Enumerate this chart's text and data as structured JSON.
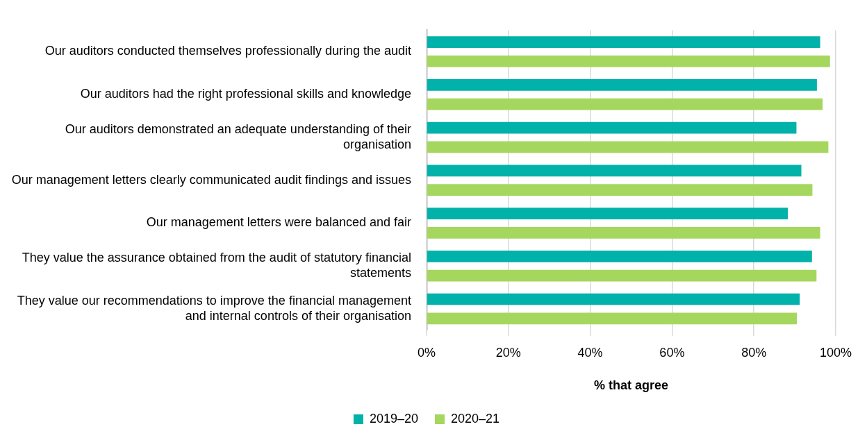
{
  "chart_data": {
    "type": "bar",
    "orientation": "horizontal",
    "xlabel": "% that agree",
    "categories": [
      "Our auditors conducted themselves professionally during the audit",
      "Our auditors had the right professional skills and knowledge",
      "Our auditors demonstrated an adequate understanding of their organisation",
      "Our management letters clearly communicated audit findings and issues",
      "Our management letters were balanced and fair",
      "They value the assurance obtained from the audit of statutory financial statements",
      "They value our recommendations to improve the financial management and internal controls of their organisation"
    ],
    "series": [
      {
        "name": "2019–20",
        "color": "#00b2a9",
        "values": [
          96.2,
          95.4,
          90.4,
          91.6,
          88.3,
          94.2,
          91.2
        ]
      },
      {
        "name": "2020–21",
        "color": "#a5d75e",
        "values": [
          98.6,
          96.8,
          98.2,
          94.3,
          96.2,
          95.3,
          90.5
        ]
      }
    ],
    "xlim": [
      0,
      100
    ],
    "xticks": [
      {
        "value": 0,
        "label": "0%"
      },
      {
        "value": 20,
        "label": "20%"
      },
      {
        "value": 40,
        "label": "40%"
      },
      {
        "value": 60,
        "label": "60%"
      },
      {
        "value": 80,
        "label": "80%"
      },
      {
        "value": 100,
        "label": "100%"
      }
    ],
    "grid": "x",
    "legend": "bottom"
  }
}
